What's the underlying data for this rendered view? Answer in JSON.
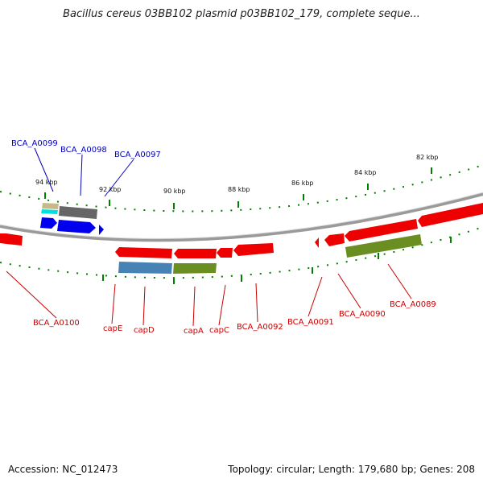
{
  "title": "Bacillus cereus 03BB102 plasmid p03BB102_179, complete seque...",
  "footer": {
    "accession": "Accession: NC_012473",
    "summary": "Topology: circular; Length: 179,680 bp; Genes: 208"
  },
  "colors": {
    "forward_gene": "#0000ee",
    "reverse_gene": "#ee0000",
    "reverse_label": "#cc0000",
    "forward_label": "#0000bb",
    "tick": "#008000",
    "backbone": "#888888",
    "cds_grey": "#666666",
    "cds_steelblue": "#4682b4",
    "cds_olive": "#6b8e23",
    "cds_tan": "#c8b88a",
    "cds_cyan": "#00e0e0"
  },
  "kbp_labels": [
    "94 kbp",
    "92 kbp",
    "90 kbp",
    "88 kbp",
    "86 kbp",
    "84 kbp",
    "82 kbp"
  ],
  "forward_gene_labels": [
    "BCA_A0099",
    "BCA_A0098",
    "BCA_A0097"
  ],
  "reverse_gene_labels": [
    "BCA_A0100",
    "capE",
    "capD",
    "capA",
    "capC",
    "BCA_A0092",
    "BCA_A0091",
    "BCA_A0090",
    "BCA_A0089"
  ]
}
